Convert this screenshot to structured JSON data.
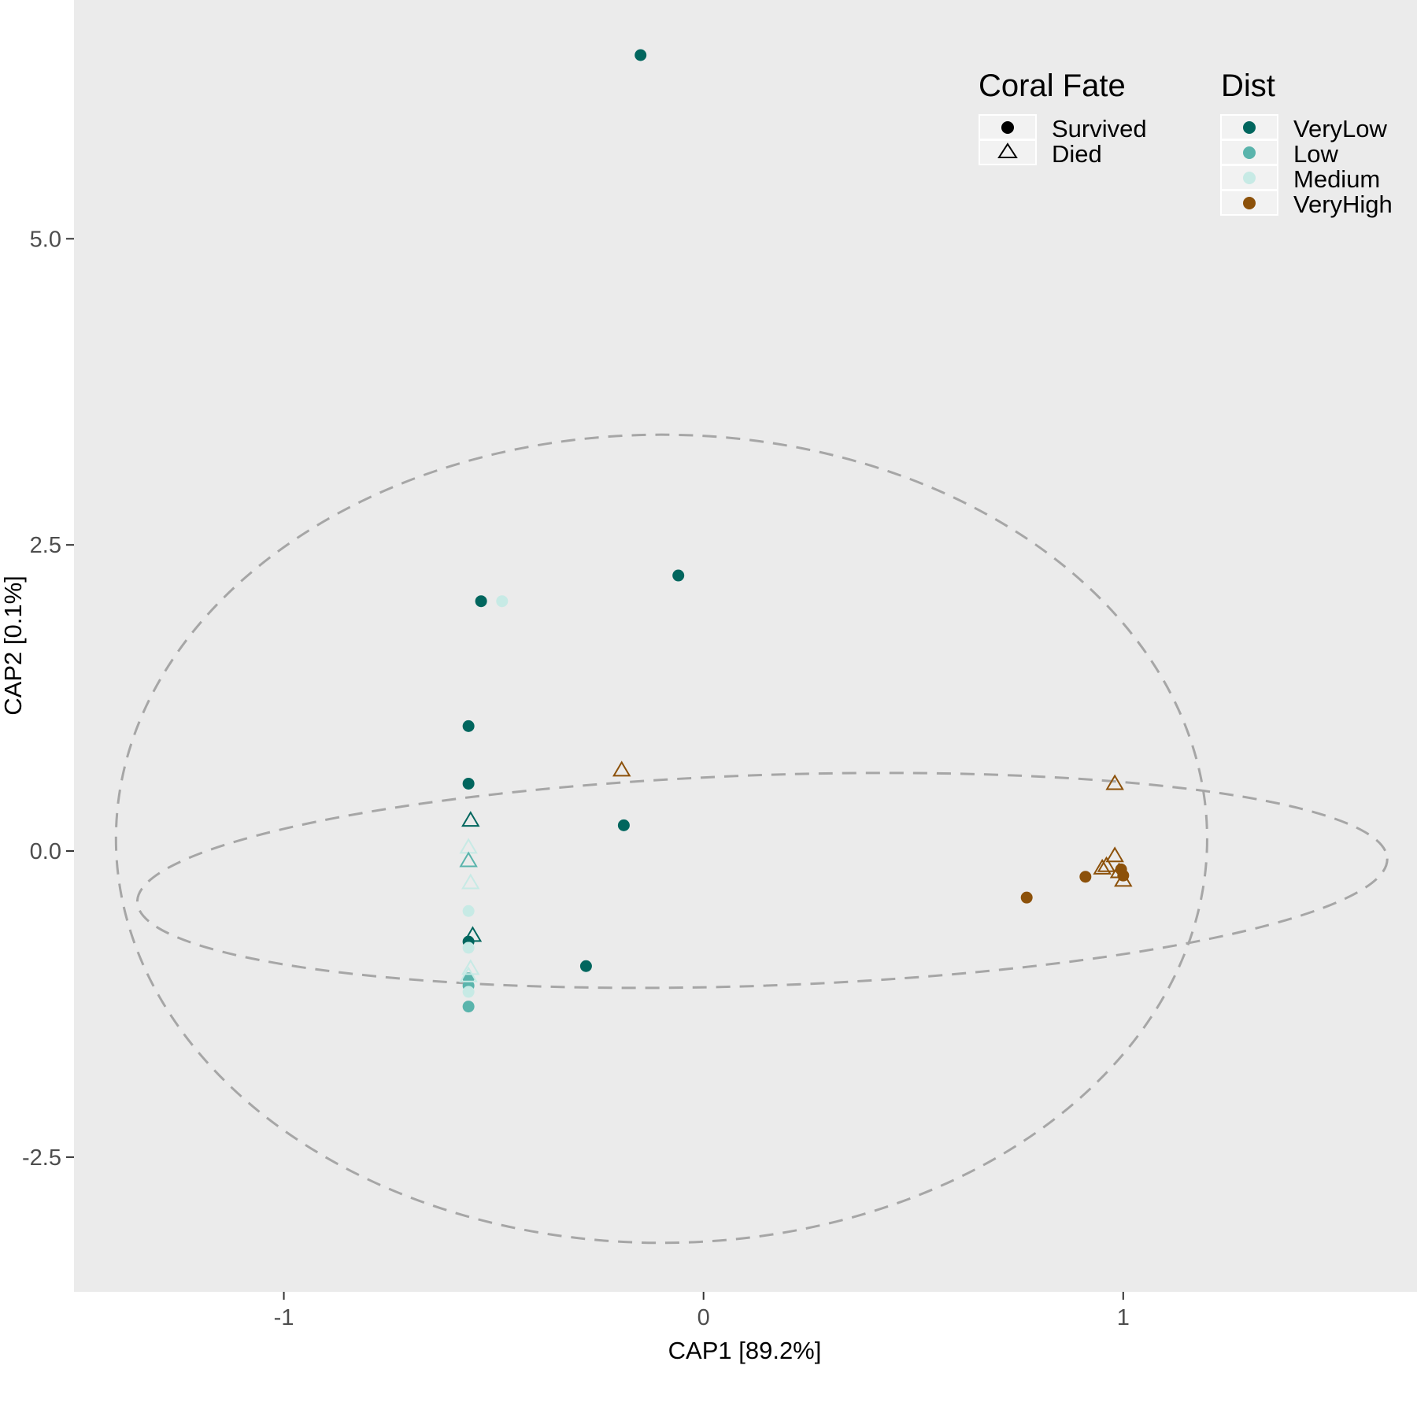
{
  "chart_data": {
    "type": "scatter",
    "title": "",
    "xlabel": "CAP1   [89.2%]",
    "ylabel": "CAP2  [0.1%]",
    "xlim": [
      -1.5,
      1.7
    ],
    "ylim": [
      -3.6,
      6.95
    ],
    "xticks": [
      {
        "value": -1,
        "label": "-1"
      },
      {
        "value": 0,
        "label": "0"
      },
      {
        "value": 1,
        "label": "1"
      }
    ],
    "yticks": [
      {
        "value": -2.5,
        "label": "-2.5"
      },
      {
        "value": 0,
        "label": "0.0"
      },
      {
        "value": 2.5,
        "label": "2.5"
      },
      {
        "value": 5,
        "label": "5.0"
      }
    ],
    "grid": false,
    "panel_background": "#ebebeb",
    "ellipse_color": "#a6a6a6",
    "legend": {
      "placement": "top-right inside",
      "shape": {
        "title": "Coral Fate",
        "entries": [
          {
            "label": "Survived",
            "shape": "circle"
          },
          {
            "label": "Died",
            "shape": "triangle"
          }
        ]
      },
      "color": {
        "title": "Dist",
        "entries": [
          {
            "label": "VeryLow",
            "color": "#01665e"
          },
          {
            "label": "Low",
            "color": "#5ab4ac"
          },
          {
            "label": "Medium",
            "color": "#c7eae5"
          },
          {
            "label": "VeryHigh",
            "color": "#8c510a"
          }
        ]
      }
    },
    "ellipses": [
      {
        "center": [
          -0.1,
          0.1
        ],
        "rx": 1.3,
        "ry": 3.3,
        "angle": 0
      },
      {
        "center": [
          0.14,
          -0.24
        ],
        "rx": 1.49,
        "ry": 0.86,
        "angle": 2
      }
    ],
    "points": [
      {
        "x": -0.15,
        "y": 6.5,
        "dist": "VeryLow",
        "fate": "Survived"
      },
      {
        "x": -0.06,
        "y": 2.25,
        "dist": "VeryLow",
        "fate": "Survived"
      },
      {
        "x": -0.53,
        "y": 2.04,
        "dist": "VeryLow",
        "fate": "Survived"
      },
      {
        "x": -0.48,
        "y": 2.04,
        "dist": "Medium",
        "fate": "Survived"
      },
      {
        "x": -0.56,
        "y": 1.02,
        "dist": "VeryLow",
        "fate": "Survived"
      },
      {
        "x": -0.56,
        "y": 0.55,
        "dist": "VeryLow",
        "fate": "Survived"
      },
      {
        "x": -0.19,
        "y": 0.21,
        "dist": "VeryLow",
        "fate": "Survived"
      },
      {
        "x": -0.28,
        "y": -0.94,
        "dist": "VeryLow",
        "fate": "Survived"
      },
      {
        "x": -0.56,
        "y": -0.74,
        "dist": "VeryLow",
        "fate": "Survived"
      },
      {
        "x": -0.56,
        "y": -0.49,
        "dist": "Medium",
        "fate": "Survived"
      },
      {
        "x": -0.56,
        "y": -0.79,
        "dist": "Medium",
        "fate": "Survived"
      },
      {
        "x": -0.56,
        "y": -1.04,
        "dist": "Low",
        "fate": "Survived"
      },
      {
        "x": -0.56,
        "y": -1.1,
        "dist": "Low",
        "fate": "Survived"
      },
      {
        "x": -0.56,
        "y": -1.15,
        "dist": "Medium",
        "fate": "Survived"
      },
      {
        "x": -0.56,
        "y": -1.27,
        "dist": "Low",
        "fate": "Survived"
      },
      {
        "x": -0.555,
        "y": 0.25,
        "dist": "VeryLow",
        "fate": "Died"
      },
      {
        "x": -0.56,
        "y": 0.03,
        "dist": "Medium",
        "fate": "Died"
      },
      {
        "x": -0.56,
        "y": -0.08,
        "dist": "Low",
        "fate": "Died"
      },
      {
        "x": -0.555,
        "y": -0.26,
        "dist": "Medium",
        "fate": "Died"
      },
      {
        "x": -0.55,
        "y": -0.69,
        "dist": "VeryLow",
        "fate": "Died"
      },
      {
        "x": -0.555,
        "y": -0.96,
        "dist": "Medium",
        "fate": "Died"
      },
      {
        "x": -0.56,
        "y": -1.02,
        "dist": "Medium",
        "fate": "Died"
      },
      {
        "x": -0.195,
        "y": 0.66,
        "dist": "VeryHigh",
        "fate": "Died"
      },
      {
        "x": 0.98,
        "y": 0.55,
        "dist": "VeryHigh",
        "fate": "Died"
      },
      {
        "x": 0.98,
        "y": -0.04,
        "dist": "VeryHigh",
        "fate": "Died"
      },
      {
        "x": 0.96,
        "y": -0.12,
        "dist": "VeryHigh",
        "fate": "Died"
      },
      {
        "x": 0.99,
        "y": -0.17,
        "dist": "VeryHigh",
        "fate": "Died"
      },
      {
        "x": 1.0,
        "y": -0.24,
        "dist": "VeryHigh",
        "fate": "Died"
      },
      {
        "x": 0.95,
        "y": -0.14,
        "dist": "VeryHigh",
        "fate": "Died"
      },
      {
        "x": 0.77,
        "y": -0.38,
        "dist": "VeryHigh",
        "fate": "Survived"
      },
      {
        "x": 0.91,
        "y": -0.21,
        "dist": "VeryHigh",
        "fate": "Survived"
      },
      {
        "x": 0.995,
        "y": -0.15,
        "dist": "VeryHigh",
        "fate": "Survived"
      },
      {
        "x": 1.0,
        "y": -0.2,
        "dist": "VeryHigh",
        "fate": "Survived"
      }
    ]
  }
}
